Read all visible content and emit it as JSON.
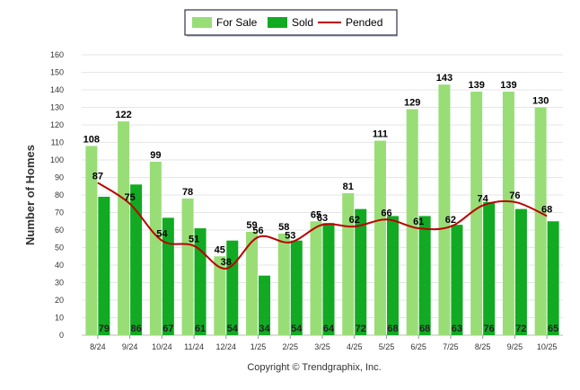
{
  "chart_data": {
    "type": "bar",
    "categories": [
      "8/24",
      "9/24",
      "10/24",
      "11/24",
      "12/24",
      "1/25",
      "2/25",
      "3/25",
      "4/25",
      "5/25",
      "6/25",
      "7/25",
      "8/25",
      "9/25",
      "10/25"
    ],
    "series": [
      {
        "name": "For Sale",
        "kind": "bar",
        "color": "#99dd77",
        "values": [
          108,
          122,
          99,
          78,
          45,
          59,
          58,
          65,
          81,
          111,
          129,
          143,
          139,
          139,
          130
        ]
      },
      {
        "name": "Sold",
        "kind": "bar",
        "color": "#11aa22",
        "values": [
          79,
          86,
          67,
          61,
          54,
          34,
          54,
          64,
          72,
          68,
          68,
          63,
          76,
          72,
          65
        ]
      },
      {
        "name": "Pended",
        "kind": "line",
        "color": "#bb0000",
        "values": [
          87,
          75,
          54,
          51,
          38,
          56,
          53,
          63,
          62,
          66,
          61,
          62,
          74,
          76,
          68
        ]
      }
    ],
    "ylabel": "Number of Homes",
    "xlabel": "",
    "ylim": [
      0,
      160
    ],
    "yticks": [
      0,
      10,
      20,
      30,
      40,
      50,
      60,
      70,
      80,
      90,
      100,
      110,
      120,
      130,
      140,
      150,
      160
    ],
    "grid": true,
    "legend_position": "top-center"
  },
  "footer": "Copyright © Trendgraphix, Inc."
}
